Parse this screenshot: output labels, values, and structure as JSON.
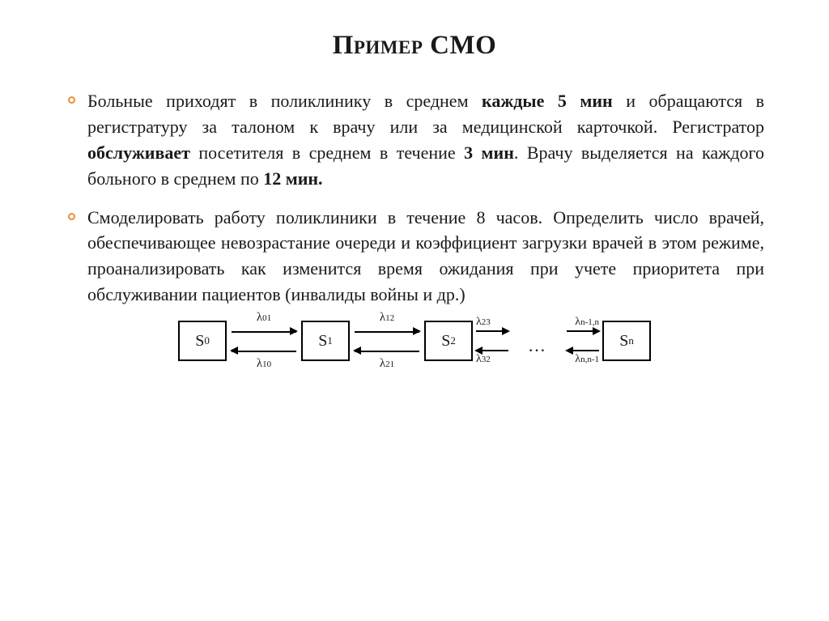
{
  "accent_color": "#e98f3a",
  "title": "Пример СМО",
  "bullets": [
    {
      "parts": [
        {
          "t": "Больные приходят в поликлинику в среднем ",
          "b": false
        },
        {
          "t": "каждые 5 мин",
          "b": true
        },
        {
          "t": " и обращаются в регистратуру за талоном к врачу или за медицинской карточкой. Регистратор ",
          "b": false
        },
        {
          "t": "обслуживает",
          "b": true
        },
        {
          "t": " посетителя в среднем в течение ",
          "b": false
        },
        {
          "t": "3 мин",
          "b": true
        },
        {
          "t": ". Врачу выделяется на каждого больного в среднем по ",
          "b": false
        },
        {
          "t": "12 мин.",
          "b": true
        }
      ]
    },
    {
      "parts": [
        {
          "t": "Смоделировать работу поликлиники в течение 8 часов. Определить число врачей, обеспечивающее невозрастание очереди и коэффициент загрузки врачей в этом режиме, проанализировать как изменится  время ожидания при учете приоритета при обслуживании пациентов (инвалиды войны и др.)",
          "b": false
        }
      ]
    }
  ],
  "diagram": {
    "states": [
      {
        "base": "S",
        "sub": "0"
      },
      {
        "base": "S",
        "sub": "1"
      },
      {
        "base": "S",
        "sub": "2"
      },
      {
        "base": "S",
        "sub": "n"
      }
    ],
    "full_transitions": [
      {
        "fwd": "λ",
        "fwd_sub": "01",
        "back": "λ",
        "back_sub": "10"
      },
      {
        "fwd": "λ",
        "fwd_sub": "12",
        "back": "λ",
        "back_sub": "21"
      }
    ],
    "gap_left": {
      "out_top": "λ",
      "out_top_sub": "23",
      "in_bot": "λ",
      "in_bot_sub": "32"
    },
    "gap_right": {
      "in_top": "λ",
      "in_top_sub": "n-1,n",
      "out_bot": "λ",
      "out_bot_sub": "n,n-1"
    },
    "ellipsis": "…"
  }
}
